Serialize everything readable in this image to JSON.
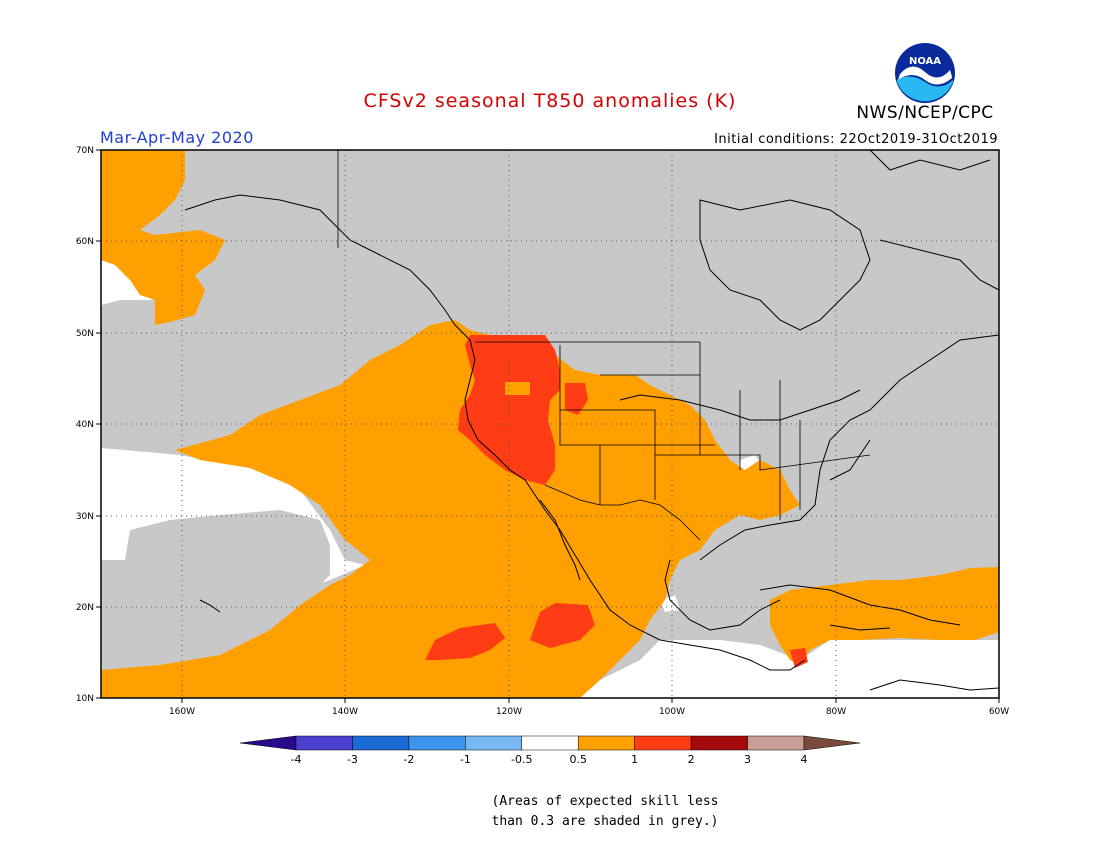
{
  "header": {
    "title": "CFSv2 seasonal T850 anomalies (K)",
    "agency": "NWS/NCEP/CPC",
    "season": "Mar-Apr-May 2020",
    "initial_conditions": "Initial conditions: 22Oct2019-31Oct2019",
    "logo_text": "NOAA"
  },
  "map": {
    "lat_labels": [
      "70N",
      "60N",
      "50N",
      "40N",
      "30N",
      "20N",
      "10N"
    ],
    "lon_labels": [
      "160W",
      "140W",
      "120W",
      "100W",
      "80W",
      "60W"
    ],
    "colors": {
      "skill_grey": "#c8c8c8",
      "anom_0_5_1": "#ffa000",
      "anom_1_2": "#ff3c14",
      "background_white": "#ffffff"
    }
  },
  "colorbar": {
    "labels": [
      "-4",
      "-3",
      "-2",
      "-1",
      "-0.5",
      "0.5",
      "1",
      "2",
      "3",
      "4"
    ],
    "colors": [
      "#2a0a8c",
      "#4b3fd0",
      "#1c6ad4",
      "#3c96f0",
      "#78b9f4",
      "#ffffff",
      "#ffa000",
      "#ff3c14",
      "#a50a0a",
      "#c8a096",
      "#7a4a3a"
    ]
  },
  "note": {
    "line1": "(Areas of expected skill less",
    "line2": "than 0.3 are shaded in grey.)"
  }
}
